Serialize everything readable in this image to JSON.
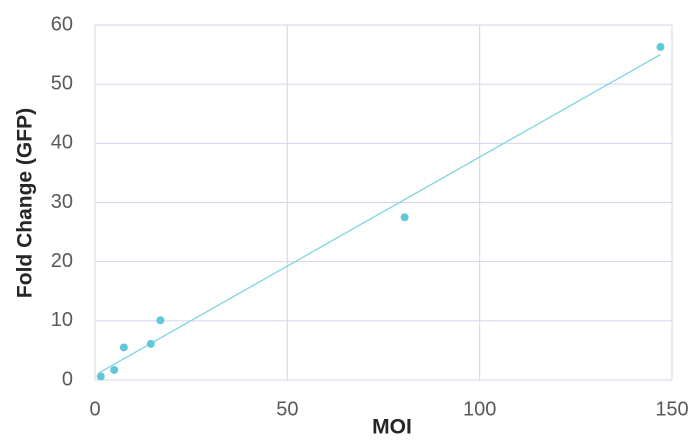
{
  "chart_data": {
    "type": "scatter",
    "x_label": "MOI",
    "y_label": "Fold Change (GFP)",
    "series": [
      {
        "color": "#5fc9d9",
        "x": [
          1.5,
          5,
          7.5,
          14.5,
          17,
          80.5,
          147
        ],
        "values": [
          0.6,
          1.7,
          5.5,
          6.1,
          10.1,
          27.5,
          56.3
        ]
      }
    ],
    "trendline": {
      "color": "#7fd6df",
      "x": [
        1,
        147
      ],
      "y": [
        1.2,
        55
      ]
    },
    "xlim": [
      0,
      150
    ],
    "xticks": [
      0,
      50,
      100,
      150
    ],
    "ylim": [
      0,
      60
    ],
    "yticks": [
      0,
      10,
      20,
      30,
      40,
      50,
      60
    ],
    "grid": true
  }
}
